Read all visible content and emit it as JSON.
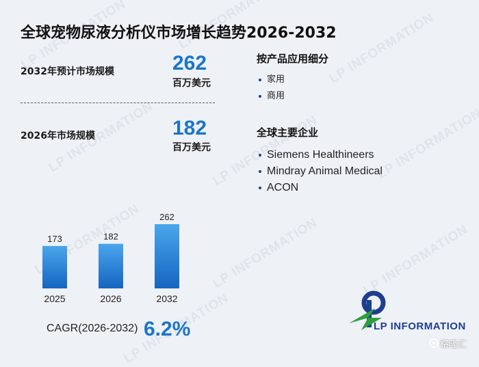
{
  "title": "全球宠物尿液分析仪市场增长趋势2026-2032",
  "market_2032": {
    "label": "2032年预计市场规模",
    "value": "262",
    "unit": "百万美元"
  },
  "market_2026": {
    "label": "2026年市场规模",
    "value": "182",
    "unit": "百万美元"
  },
  "segments": {
    "title": "按产品应用细分",
    "items": [
      "家用",
      "商用"
    ]
  },
  "companies": {
    "title": "全球主要企业",
    "items": [
      "Siemens Healthineers",
      "Mindray Animal Medical",
      "ACON"
    ]
  },
  "cagr": {
    "label": "CAGR(2026-2032)",
    "value": "6.2%"
  },
  "brand": {
    "name": "LP INFORMATION",
    "watermark": "LP INFORMATION"
  },
  "credit": "格隆汇",
  "colors": {
    "accent": "#1b75c9",
    "bar_top": "#4aa6ec",
    "bar_bottom": "#1565c0",
    "brand": "#1d3f8f",
    "logo_green": "#2e9e3a"
  },
  "chart_data": {
    "type": "bar",
    "categories": [
      "2025",
      "2026",
      "2032"
    ],
    "values": [
      173,
      182,
      262
    ],
    "title": "",
    "xlabel": "",
    "ylabel": "",
    "ylim": [
      0,
      262
    ],
    "grid": false
  }
}
